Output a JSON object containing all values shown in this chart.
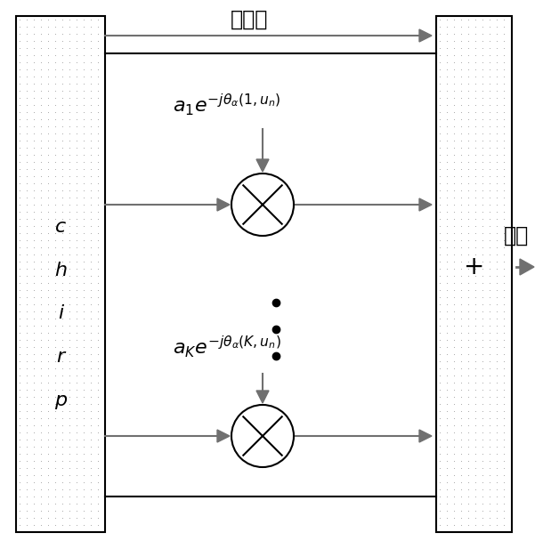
{
  "bg_color": "#ffffff",
  "dot_fill": "#c8c8c8",
  "box_edge": "#000000",
  "arrow_color": "#606060",
  "arrow_head_color": "#707070",
  "text_color": "#000000",
  "title_zh": "直达声",
  "output_label": "输出",
  "plus_label": "+",
  "label1": "$a_1e^{-j\\theta_{\\alpha}(1,u_n)}$",
  "label2": "$a_Ke^{-j\\theta_{\\alpha}(K,u_n)}$",
  "fig_width": 6.1,
  "fig_height": 6.17,
  "dpi": 100
}
